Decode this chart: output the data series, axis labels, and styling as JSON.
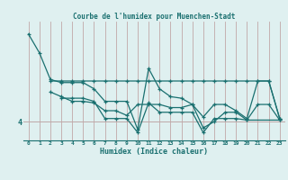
{
  "title": "Courbe de l'humidex pour Muenchen-Stadt",
  "xlabel": "Humidex (Indice chaleur)",
  "bg_color": "#dff0f0",
  "line_color": "#1a7070",
  "grid_color": "#c0a8a8",
  "x": [
    0,
    1,
    2,
    3,
    4,
    5,
    6,
    7,
    8,
    9,
    10,
    11,
    12,
    13,
    14,
    15,
    16,
    17,
    18,
    19,
    20,
    21,
    22,
    23
  ],
  "series1": [
    6.8,
    6.2,
    5.35,
    5.25,
    5.25,
    5.25,
    5.05,
    4.65,
    4.65,
    4.65,
    3.75,
    5.7,
    5.05,
    4.8,
    4.75,
    4.55,
    4.15,
    4.55,
    4.55,
    4.35,
    4.1,
    5.3,
    5.3,
    4.1
  ],
  "series2": [
    null,
    null,
    5.3,
    5.3,
    5.3,
    5.3,
    5.3,
    5.3,
    5.3,
    5.3,
    5.3,
    5.3,
    5.3,
    5.3,
    5.3,
    5.3,
    5.3,
    5.3,
    5.3,
    5.3,
    5.3,
    5.3,
    5.3,
    4.1
  ],
  "series3": [
    null,
    null,
    4.95,
    4.8,
    4.65,
    4.65,
    4.6,
    4.35,
    4.35,
    4.2,
    4.55,
    4.55,
    4.55,
    4.45,
    4.45,
    4.55,
    3.8,
    4.0,
    4.3,
    4.3,
    4.05,
    4.55,
    4.55,
    4.05
  ],
  "series4": [
    null,
    null,
    null,
    4.75,
    4.75,
    4.75,
    4.65,
    4.1,
    4.1,
    4.1,
    3.65,
    4.6,
    4.3,
    4.3,
    4.3,
    4.3,
    3.65,
    4.1,
    4.1,
    4.1,
    4.05,
    null,
    null,
    4.05
  ],
  "ytick_positions": [
    4
  ],
  "ytick_labels": [
    "4"
  ],
  "ylim": [
    3.4,
    7.2
  ],
  "xlim": [
    -0.5,
    23.5
  ]
}
